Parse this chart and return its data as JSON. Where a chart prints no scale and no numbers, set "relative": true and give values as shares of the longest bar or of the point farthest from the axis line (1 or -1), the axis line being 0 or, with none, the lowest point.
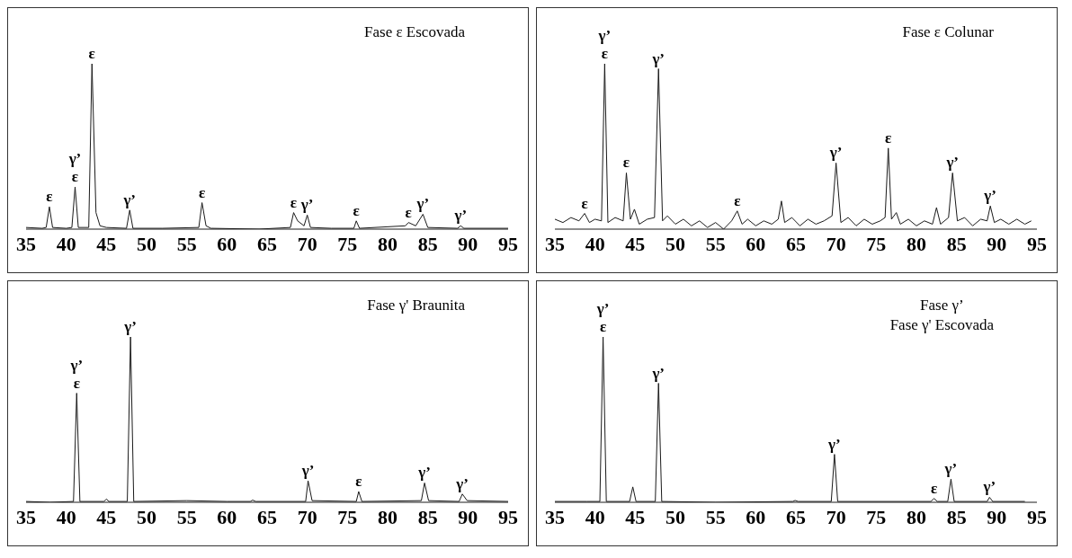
{
  "chart_data": [
    {
      "type": "line",
      "relative": true,
      "title": "Fase ε Escovada",
      "xlim": [
        35,
        95
      ],
      "xticks": [
        35,
        40,
        45,
        50,
        55,
        60,
        65,
        70,
        75,
        80,
        85,
        90,
        95
      ],
      "grid": false,
      "legend": false,
      "marker": "none",
      "line_style": "solid",
      "series": [
        {
          "color": "#1a1a1a",
          "x": [
            35,
            37,
            37.5,
            37.9,
            38.3,
            40,
            40.7,
            41.1,
            41.5,
            42.8,
            43.2,
            43.7,
            44.2,
            45,
            47.5,
            47.9,
            48.3,
            52,
            56.5,
            56.9,
            57.4,
            58,
            64,
            67.9,
            68.3,
            68.8,
            69.6,
            70,
            70.4,
            73,
            75.8,
            76.1,
            76.5,
            82.2,
            82.6,
            83.5,
            84.4,
            85,
            88.7,
            89.1,
            89.5,
            95
          ],
          "values": [
            0.01,
            0.005,
            0.01,
            0.135,
            0.01,
            0.005,
            0.01,
            0.255,
            0.01,
            0.01,
            1,
            0.1,
            0.02,
            0.01,
            0.005,
            0.115,
            0.005,
            0.005,
            0.01,
            0.16,
            0.02,
            0.005,
            0,
            0.01,
            0.1,
            0.05,
            0.02,
            0.085,
            0.01,
            0.005,
            0.005,
            0.05,
            0.005,
            0.02,
            0.04,
            0.02,
            0.09,
            0.01,
            0.005,
            0.02,
            0.005,
            0.005
          ]
        }
      ],
      "annotations": [
        {
          "text": "ε",
          "x": 37.9,
          "y": 0.135
        },
        {
          "text": "ε",
          "x": 41.1,
          "y": 0.255
        },
        {
          "text": "γ’",
          "x": 41.1,
          "y": 0.255
        },
        {
          "text": "ε",
          "x": 43.2,
          "y": 1
        },
        {
          "text": "γ’",
          "x": 47.9,
          "y": 0.115
        },
        {
          "text": "ε",
          "x": 56.9,
          "y": 0.16
        },
        {
          "text": "ε",
          "x": 68.3,
          "y": 0.1
        },
        {
          "text": "γ’",
          "x": 70,
          "y": 0.085
        },
        {
          "text": "ε",
          "x": 76.1,
          "y": 0.05
        },
        {
          "text": "ε",
          "x": 82.6,
          "y": 0.04
        },
        {
          "text": "γ’",
          "x": 84.4,
          "y": 0.09
        },
        {
          "text": "γ’",
          "x": 89.1,
          "y": 0.02
        }
      ]
    },
    {
      "type": "line",
      "relative": true,
      "title": "Fase ε  Colunar",
      "xlim": [
        35,
        95
      ],
      "xticks": [
        35,
        40,
        45,
        50,
        55,
        60,
        65,
        70,
        75,
        80,
        85,
        90,
        95
      ],
      "grid": false,
      "legend": false,
      "marker": "none",
      "line_style": "solid",
      "series": [
        {
          "color": "#1a1a1a",
          "x": [
            35,
            36,
            37,
            38,
            38.7,
            39.3,
            40,
            40.8,
            41.2,
            41.6,
            42.5,
            43.5,
            43.9,
            44.4,
            44.9,
            45.5,
            46.5,
            47.4,
            47.9,
            48.4,
            49,
            50,
            51,
            52,
            53,
            54,
            55,
            56,
            57,
            57.7,
            58.3,
            59,
            60,
            61,
            62,
            62.8,
            63.2,
            63.6,
            64.5,
            65.5,
            66.5,
            67.5,
            68.5,
            69.5,
            70,
            70.6,
            71.5,
            72.5,
            73.5,
            74.5,
            75.5,
            76.1,
            76.5,
            76.9,
            77.5,
            78,
            79,
            80,
            81,
            82,
            82.5,
            83,
            84,
            84.5,
            85.1,
            86,
            87,
            88,
            88.8,
            89.2,
            89.7,
            90.5,
            91.5,
            92.5,
            93.5,
            94.3
          ],
          "values": [
            0.06,
            0.04,
            0.07,
            0.05,
            0.095,
            0.04,
            0.06,
            0.05,
            1,
            0.04,
            0.07,
            0.05,
            0.34,
            0.06,
            0.12,
            0.03,
            0.06,
            0.07,
            0.97,
            0.05,
            0.08,
            0.03,
            0.06,
            0.02,
            0.05,
            0.01,
            0.04,
            0,
            0.05,
            0.11,
            0.03,
            0.06,
            0.02,
            0.05,
            0.03,
            0.06,
            0.17,
            0.04,
            0.07,
            0.02,
            0.06,
            0.03,
            0.05,
            0.08,
            0.4,
            0.04,
            0.07,
            0.02,
            0.06,
            0.03,
            0.05,
            0.07,
            0.49,
            0.06,
            0.1,
            0.03,
            0.06,
            0.02,
            0.05,
            0.03,
            0.13,
            0.03,
            0.07,
            0.34,
            0.05,
            0.07,
            0.02,
            0.06,
            0.05,
            0.14,
            0.04,
            0.06,
            0.03,
            0.06,
            0.03,
            0.05
          ]
        }
      ],
      "annotations": [
        {
          "text": "ε",
          "x": 38.7,
          "y": 0.095
        },
        {
          "text": "ε",
          "x": 41.2,
          "y": 1
        },
        {
          "text": "γ’",
          "x": 41.2,
          "y": 1
        },
        {
          "text": "ε",
          "x": 43.9,
          "y": 0.34
        },
        {
          "text": "γ’",
          "x": 47.9,
          "y": 0.97
        },
        {
          "text": "ε",
          "x": 57.7,
          "y": 0.11
        },
        {
          "text": "γ’",
          "x": 70,
          "y": 0.4
        },
        {
          "text": "ε",
          "x": 76.5,
          "y": 0.49
        },
        {
          "text": "γ’",
          "x": 84.5,
          "y": 0.34
        },
        {
          "text": "γ’",
          "x": 89.2,
          "y": 0.14
        }
      ]
    },
    {
      "type": "line",
      "relative": true,
      "title": "Fase γ' Braunita",
      "xlim": [
        35,
        95
      ],
      "xticks": [
        35,
        40,
        45,
        50,
        55,
        60,
        65,
        70,
        75,
        80,
        85,
        90,
        95
      ],
      "grid": false,
      "legend": false,
      "marker": "none",
      "line_style": "solid",
      "series": [
        {
          "color": "#1a1a1a",
          "x": [
            35,
            38,
            40.9,
            41.3,
            41.7,
            44.7,
            45,
            45.3,
            47.6,
            48,
            48.4,
            55,
            60,
            62.9,
            63.2,
            63.6,
            69.8,
            70.1,
            70.6,
            76.1,
            76.4,
            76.8,
            84.2,
            84.6,
            85.1,
            88.9,
            89.3,
            89.9,
            95
          ],
          "values": [
            0.005,
            0,
            0.005,
            0.66,
            0.005,
            0.005,
            0.02,
            0.005,
            0.005,
            1,
            0.005,
            0.01,
            0.005,
            0.005,
            0.013,
            0.005,
            0.005,
            0.13,
            0.01,
            0.005,
            0.065,
            0.005,
            0.01,
            0.117,
            0.01,
            0.005,
            0.05,
            0.01,
            0.005
          ]
        }
      ],
      "annotations": [
        {
          "text": "ε",
          "x": 41.3,
          "y": 0.66
        },
        {
          "text": "γ’",
          "x": 41.3,
          "y": 0.66
        },
        {
          "text": "γ’",
          "x": 48,
          "y": 1
        },
        {
          "text": "γ’",
          "x": 70.1,
          "y": 0.13
        },
        {
          "text": "ε",
          "x": 76.4,
          "y": 0.065
        },
        {
          "text": "γ’",
          "x": 84.6,
          "y": 0.117
        },
        {
          "text": "γ’",
          "x": 89.3,
          "y": 0.05
        }
      ]
    },
    {
      "type": "line",
      "relative": true,
      "title": "Fase γ’",
      "subtitle": "Fase γ' Escovada",
      "xlim": [
        35,
        95
      ],
      "xticks": [
        35,
        40,
        45,
        50,
        55,
        60,
        65,
        70,
        75,
        80,
        85,
        90,
        95
      ],
      "grid": false,
      "legend": false,
      "marker": "none",
      "line_style": "solid",
      "series": [
        {
          "color": "#1a1a1a",
          "x": [
            35,
            39,
            40.6,
            41,
            41.4,
            44.3,
            44.7,
            45.1,
            47.5,
            47.9,
            48.3,
            55,
            64.6,
            64.9,
            65.3,
            69.4,
            69.8,
            70.2,
            81.8,
            82.2,
            82.6,
            83.9,
            84.3,
            84.7,
            88.8,
            89.1,
            89.5,
            93.5
          ],
          "values": [
            0.005,
            0.005,
            0.005,
            1,
            0.005,
            0.005,
            0.093,
            0.005,
            0.005,
            0.72,
            0.005,
            0,
            0.005,
            0.011,
            0.005,
            0.005,
            0.29,
            0.005,
            0.005,
            0.023,
            0.005,
            0.005,
            0.14,
            0.005,
            0.005,
            0.03,
            0.005,
            0.005
          ]
        }
      ],
      "annotations": [
        {
          "text": "ε",
          "x": 41,
          "y": 1
        },
        {
          "text": "γ’",
          "x": 41,
          "y": 1
        },
        {
          "text": "γ’",
          "x": 47.9,
          "y": 0.72
        },
        {
          "text": "γ’",
          "x": 69.8,
          "y": 0.29
        },
        {
          "text": "ε",
          "x": 82.2,
          "y": 0.023
        },
        {
          "text": "γ’",
          "x": 84.3,
          "y": 0.14
        },
        {
          "text": "γ’",
          "x": 89.1,
          "y": 0.03
        }
      ]
    }
  ]
}
